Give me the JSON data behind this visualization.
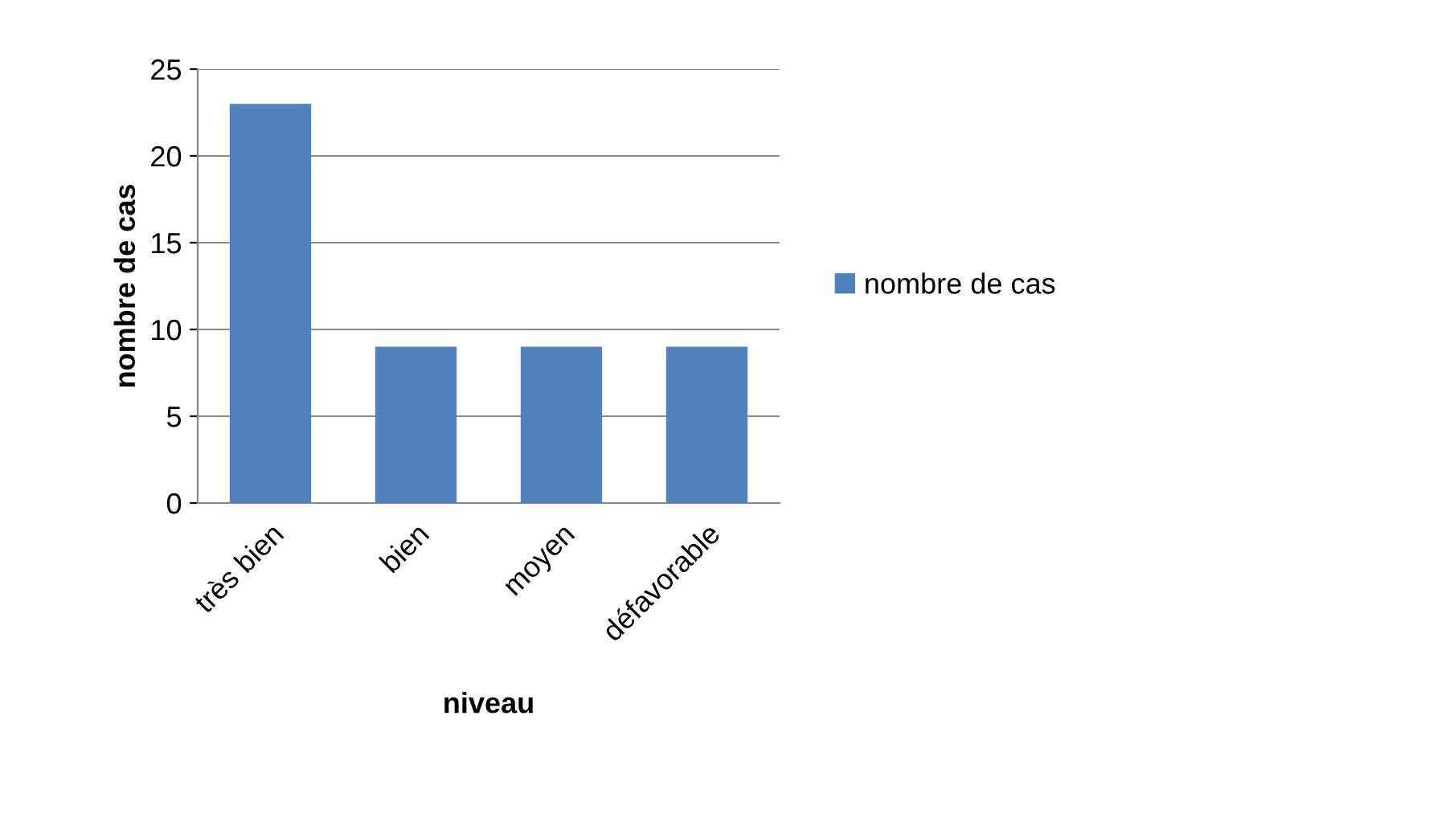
{
  "chart_data": {
    "type": "bar",
    "xlabel": "niveau",
    "ylabel": "nombre de cas",
    "categories": [
      "très bien",
      "bien",
      "moyen",
      "défavorable"
    ],
    "series": [
      {
        "name": "nombre de cas",
        "color": "#4f81bd",
        "values": [
          23,
          9,
          9,
          9
        ]
      }
    ],
    "ylim": [
      0,
      25
    ],
    "yticks": [
      0,
      5,
      10,
      15,
      20,
      25
    ],
    "grid": "y",
    "legend": "right"
  }
}
